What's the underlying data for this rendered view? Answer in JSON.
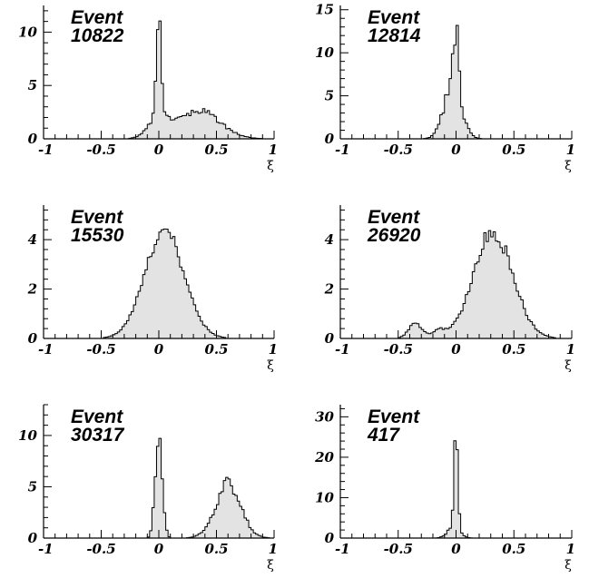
{
  "chart_data": [
    {
      "type": "bar",
      "label_lines": [
        "Event",
        "10822"
      ],
      "xlabel": "ξ",
      "xlim": [
        -1,
        1
      ],
      "ylim": [
        0,
        12.5
      ],
      "x_ticks": [
        "-1",
        "-0.5",
        "0",
        "0.5",
        "1"
      ],
      "y_ticks": [
        {
          "label": "0",
          "value": 0
        },
        {
          "label": "5",
          "value": 5
        },
        {
          "label": "10",
          "value": 10
        }
      ],
      "peaks": [
        {
          "center": 0.0,
          "sigma": 0.022,
          "height": 8.5
        },
        {
          "center": 0.0,
          "sigma": 0.09,
          "height": 1.8
        },
        {
          "center": 0.35,
          "sigma": 0.18,
          "height": 2.6
        }
      ],
      "noise": 0.25
    },
    {
      "type": "bar",
      "label_lines": [
        "Event",
        "12814"
      ],
      "xlabel": "ξ",
      "xlim": [
        -1,
        1
      ],
      "ylim": [
        0,
        15.5
      ],
      "x_ticks": [
        "-1",
        "-0.5",
        "0",
        "0.5",
        "1"
      ],
      "y_ticks": [
        {
          "label": "0",
          "value": 0
        },
        {
          "label": "5",
          "value": 5
        },
        {
          "label": "10",
          "value": 10
        },
        {
          "label": "15",
          "value": 15
        }
      ],
      "peaks": [
        {
          "center": 0.0,
          "sigma": 0.02,
          "height": 7.5
        },
        {
          "center": -0.03,
          "sigma": 0.075,
          "height": 6.2
        }
      ],
      "noise": 0.3
    },
    {
      "type": "bar",
      "label_lines": [
        "Event",
        "15530"
      ],
      "xlabel": "ξ",
      "xlim": [
        -1,
        1
      ],
      "ylim": [
        0,
        5.4
      ],
      "x_ticks": [
        "-1",
        "-0.5",
        "0",
        "0.5",
        "1"
      ],
      "y_ticks": [
        {
          "label": "0",
          "value": 0
        },
        {
          "label": "2",
          "value": 2
        },
        {
          "label": "4",
          "value": 4
        }
      ],
      "peaks": [
        {
          "center": 0.05,
          "sigma": 0.17,
          "height": 4.3
        }
      ],
      "noise": 0.15
    },
    {
      "type": "bar",
      "label_lines": [
        "Event",
        "26920"
      ],
      "xlabel": "ξ",
      "xlim": [
        -1,
        1
      ],
      "ylim": [
        0,
        5.4
      ],
      "x_ticks": [
        "-1",
        "-0.5",
        "0",
        "0.5",
        "1"
      ],
      "y_ticks": [
        {
          "label": "0",
          "value": 0
        },
        {
          "label": "2",
          "value": 2
        },
        {
          "label": "4",
          "value": 4
        }
      ],
      "peaks": [
        {
          "center": 0.32,
          "sigma": 0.17,
          "height": 4.3
        },
        {
          "center": -0.35,
          "sigma": 0.06,
          "height": 0.6
        },
        {
          "center": -0.15,
          "sigma": 0.05,
          "height": 0.3
        }
      ],
      "noise": 0.18
    },
    {
      "type": "bar",
      "label_lines": [
        "Event",
        "30317"
      ],
      "xlabel": "ξ",
      "xlim": [
        -1,
        1
      ],
      "ylim": [
        0,
        13
      ],
      "x_ticks": [
        "-1",
        "-0.5",
        "0",
        "0.5",
        "1"
      ],
      "y_ticks": [
        {
          "label": "0",
          "value": 0
        },
        {
          "label": "5",
          "value": 5
        },
        {
          "label": "10",
          "value": 10
        }
      ],
      "peaks": [
        {
          "center": 0.0,
          "sigma": 0.03,
          "height": 10.5
        },
        {
          "center": 0.6,
          "sigma": 0.11,
          "height": 5.2
        }
      ],
      "noise": 0.3
    },
    {
      "type": "bar",
      "label_lines": [
        "Event",
        "417"
      ],
      "xlabel": "ξ",
      "xlim": [
        -1,
        1
      ],
      "ylim": [
        0,
        33
      ],
      "x_ticks": [
        "-1",
        "-0.5",
        "0",
        "0.5",
        "1"
      ],
      "y_ticks": [
        {
          "label": "0",
          "value": 0
        },
        {
          "label": "10",
          "value": 10
        },
        {
          "label": "20",
          "value": 20
        },
        {
          "label": "30",
          "value": 30
        }
      ],
      "peaks": [
        {
          "center": 0.0,
          "sigma": 0.015,
          "height": 26
        },
        {
          "center": -0.02,
          "sigma": 0.05,
          "height": 3
        }
      ],
      "noise": 0.3
    }
  ]
}
